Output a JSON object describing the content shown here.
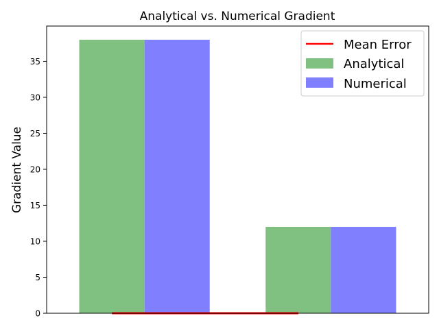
{
  "chart_data": {
    "type": "bar",
    "title": "Analytical vs. Numerical Gradient",
    "xlabel": "",
    "ylabel": "Gradient Value",
    "categories": [
      "",
      ""
    ],
    "series": [
      {
        "name": "Analytical",
        "values": [
          38,
          12
        ],
        "color": "#80c080"
      },
      {
        "name": "Numerical",
        "values": [
          38,
          12
        ],
        "color": "#8080ff"
      }
    ],
    "mean_error": {
      "name": "Mean Error",
      "value": 0,
      "color": "#ff0000"
    },
    "ylim": [
      0,
      39.9
    ],
    "yticks": [
      0,
      5,
      10,
      15,
      20,
      25,
      30,
      35
    ],
    "grid": false,
    "legend_position": "top-right"
  }
}
